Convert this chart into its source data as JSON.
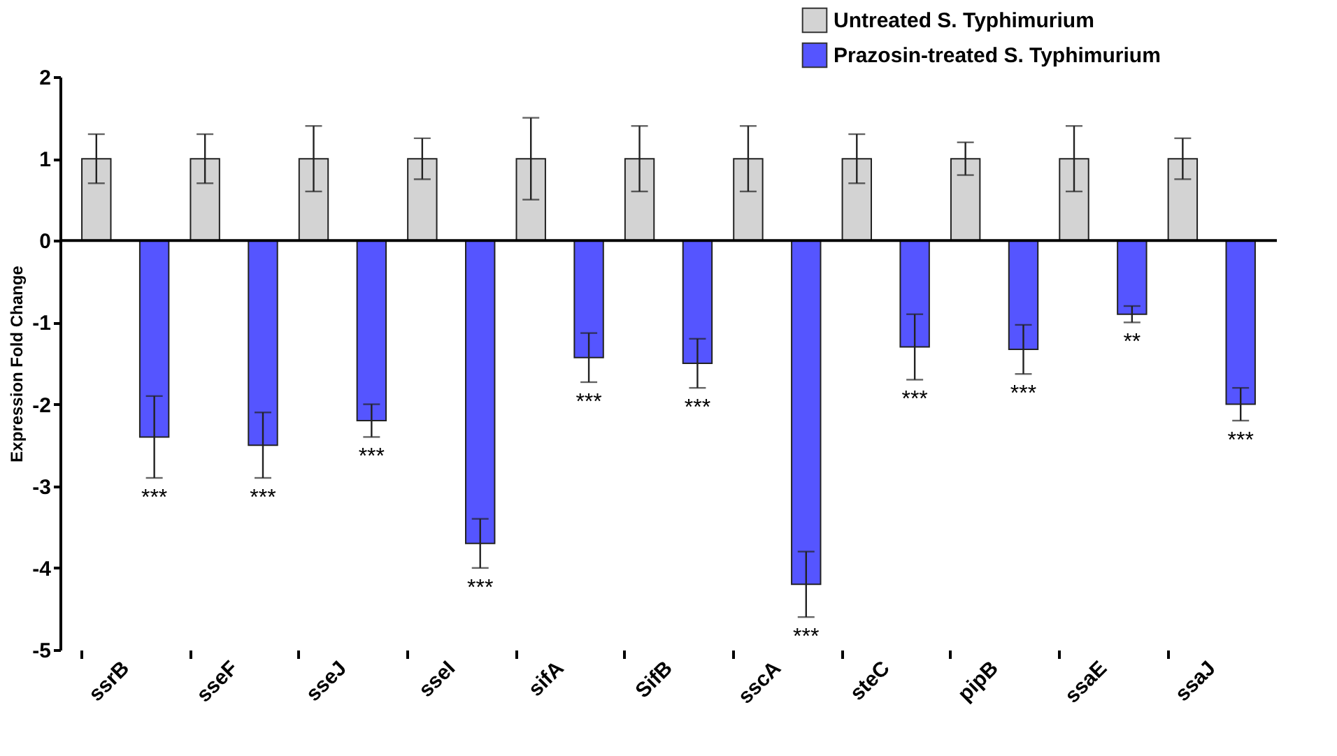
{
  "chart_data": {
    "type": "bar",
    "ylabel": "Expression Fold Change",
    "categories": [
      "ssrB",
      "sseF",
      "sseJ",
      "sseI",
      "sifA",
      "SifB",
      "sscA",
      "steC",
      "pipB",
      "ssaE",
      "ssaJ"
    ],
    "series": [
      {
        "name": "Untreated S. Typhimurium",
        "color": "#d3d3d3",
        "values": [
          1,
          1,
          1,
          1,
          1,
          1,
          1,
          1,
          1,
          1,
          1
        ],
        "errors": [
          0.3,
          0.3,
          0.4,
          0.25,
          0.5,
          0.4,
          0.4,
          0.3,
          0.2,
          0.4,
          0.25
        ]
      },
      {
        "name": "Prazosin-treated S. Typhimurium",
        "color": "#5555ff",
        "values": [
          -2.4,
          -2.5,
          -2.2,
          -3.7,
          -1.43,
          -1.5,
          -4.2,
          -1.3,
          -1.33,
          -0.9,
          -2.0
        ],
        "errors": [
          0.5,
          0.4,
          0.2,
          0.3,
          0.3,
          0.3,
          0.4,
          0.4,
          0.3,
          0.1,
          0.2
        ]
      }
    ],
    "ref_lines": [
      {
        "axis": "y",
        "value": 0,
        "color": "#000000"
      }
    ],
    "ylim": [
      -5,
      2
    ],
    "yticks": [
      -5,
      -4,
      -3,
      -2,
      -1,
      0,
      1,
      2
    ],
    "grid": false,
    "legend": "top right",
    "annotations": [
      "***",
      "***",
      "***",
      "***",
      "***",
      "***",
      "***",
      "***",
      "***",
      "**",
      "***"
    ]
  }
}
